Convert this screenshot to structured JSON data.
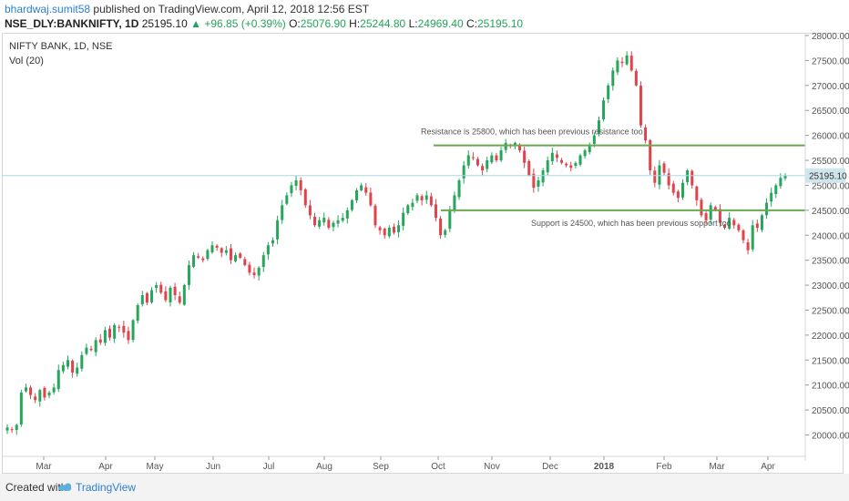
{
  "header": {
    "author": "bhardwaj.sumit58",
    "published": "published on TradingView.com, April 12, 2018 12:56 EST",
    "symbol": "NSE_DLY:BANKNIFTY, 1D",
    "last": "25195.10",
    "change": "+96.85 (+0.39%)",
    "o_label": "O:",
    "o_value": "25076.90",
    "h_label": "H:",
    "h_value": "25244.80",
    "l_label": "L:",
    "l_value": "24969.40",
    "c_label": "C:",
    "c_value": "25195.10"
  },
  "legend": {
    "title": "NIFTY BANK, 1D, NSE",
    "volume": "Vol (20)"
  },
  "footer": {
    "created": "Created with",
    "brand": "TradingView"
  },
  "colors": {
    "up": "#26a65b",
    "down": "#e0434b",
    "line": "#6aa84f",
    "price_line": "#a8d8e3",
    "axis_text": "#555555",
    "price_tag": "#cfe6ec"
  },
  "chart_data": {
    "type": "candlestick",
    "symbol": "NIFTY BANK",
    "x_ticks": [
      "Mar",
      "Apr",
      "May",
      "Jun",
      "Jul",
      "Aug",
      "Sep",
      "Oct",
      "Nov",
      "Dec",
      "2018",
      "Feb",
      "Mar",
      "Apr"
    ],
    "y_ticks": [
      20000,
      20500,
      21000,
      21500,
      22000,
      22500,
      23000,
      23500,
      24000,
      24500,
      25000,
      25500,
      26000,
      26500,
      27000,
      27500,
      28000
    ],
    "ylim": [
      19500,
      28100
    ],
    "last_price": 25195.1,
    "last_price_label": "25195.10",
    "close_series": [
      20150,
      20100,
      20200,
      20850,
      20950,
      20800,
      20700,
      20900,
      20750,
      20850,
      20950,
      21300,
      21400,
      21500,
      21250,
      21350,
      21600,
      21750,
      21700,
      21900,
      21850,
      22100,
      21950,
      22200,
      22150,
      22050,
      21900,
      22300,
      22600,
      22800,
      22650,
      22900,
      23000,
      22850,
      22700,
      22950,
      22800,
      22650,
      23000,
      23400,
      23600,
      23550,
      23500,
      23700,
      23800,
      23750,
      23650,
      23700,
      23500,
      23600,
      23550,
      23400,
      23250,
      23200,
      23350,
      23600,
      23800,
      23900,
      24300,
      24600,
      24800,
      25000,
      25100,
      24900,
      24600,
      24400,
      24200,
      24300,
      24350,
      24150,
      24250,
      24300,
      24350,
      24500,
      24700,
      24900,
      25000,
      24850,
      24600,
      24200,
      24100,
      24000,
      24150,
      24050,
      24200,
      24450,
      24600,
      24650,
      24800,
      24700,
      24800,
      24600,
      24350,
      24000,
      24100,
      24500,
      24800,
      25100,
      25400,
      25600,
      25550,
      25400,
      25300,
      25500,
      25600,
      25500,
      25700,
      25850,
      25800,
      25850,
      25700,
      25450,
      25200,
      24950,
      25100,
      25300,
      25500,
      25650,
      25550,
      25450,
      25400,
      25350,
      25450,
      25600,
      25700,
      25800,
      26000,
      26300,
      26700,
      27000,
      27300,
      27500,
      27450,
      27600,
      27300,
      27000,
      26200,
      25900,
      25300,
      25050,
      25400,
      25250,
      25000,
      24850,
      24750,
      25050,
      25300,
      25000,
      24700,
      24400,
      24300,
      24600,
      24500,
      24250,
      24150,
      24350,
      24200,
      24100,
      23900,
      23700,
      24200,
      24150,
      24400,
      24650,
      24850,
      25000,
      25150,
      25195
    ]
  },
  "annotations": [
    {
      "text": "Resistance is 25800, which has been previous resistance too",
      "price": 25800
    },
    {
      "text": "Support is 24500, which has been previous sopport too",
      "price": 24500
    }
  ]
}
